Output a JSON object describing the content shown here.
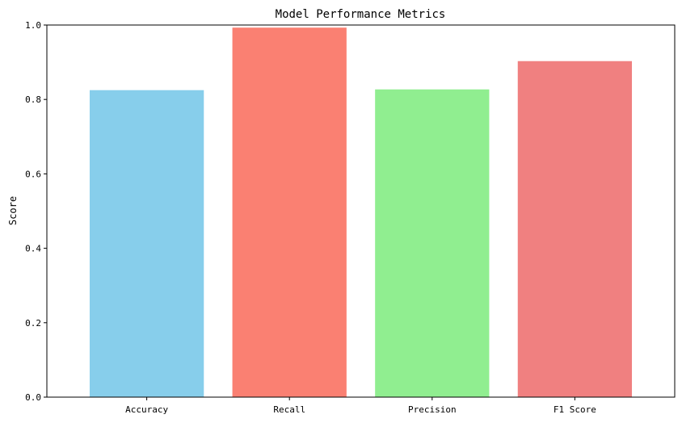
{
  "chart_data": {
    "type": "bar",
    "title": "Model Performance Metrics",
    "xlabel": "",
    "ylabel": "Score",
    "categories": [
      "Accuracy",
      "Recall",
      "Precision",
      "F1 Score"
    ],
    "values": [
      0.825,
      0.993,
      0.827,
      0.903
    ],
    "colors": [
      "#87CEEB",
      "#FA8072",
      "#90EE90",
      "#F08080"
    ],
    "ylim": [
      0,
      1.0
    ],
    "yticks": [
      "0.0",
      "0.2",
      "0.4",
      "0.6",
      "0.8",
      "1.0"
    ],
    "grid": false,
    "legend": "none"
  }
}
